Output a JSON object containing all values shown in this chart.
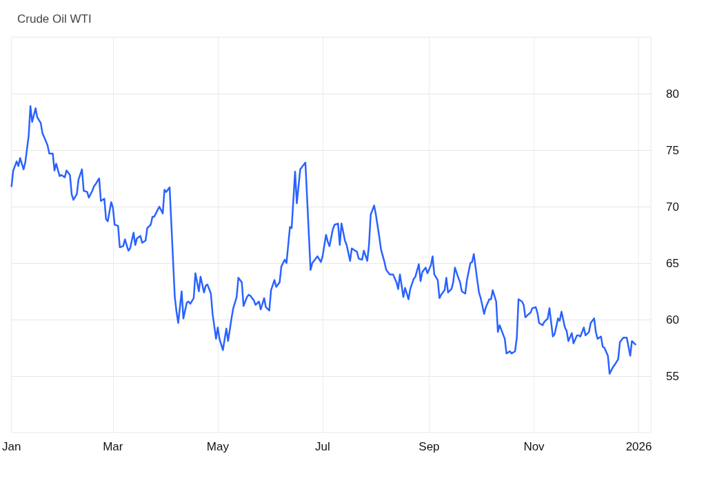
{
  "chart_data": {
    "type": "line",
    "title": "Crude Oil WTI",
    "x": [
      "2025-01-01",
      "2025-01-02",
      "2025-01-04",
      "2025-01-05",
      "2025-01-06",
      "2025-01-08",
      "2025-01-09",
      "2025-01-11",
      "2025-01-12",
      "2025-01-13",
      "2025-01-15",
      "2025-01-16",
      "2025-01-18",
      "2025-01-19",
      "2025-01-21",
      "2025-01-22",
      "2025-01-23",
      "2025-01-25",
      "2025-01-26",
      "2025-01-27",
      "2025-01-29",
      "2025-01-30",
      "2025-02-01",
      "2025-02-02",
      "2025-02-04",
      "2025-02-05",
      "2025-02-06",
      "2025-02-08",
      "2025-02-09",
      "2025-02-11",
      "2025-02-12",
      "2025-02-14",
      "2025-02-15",
      "2025-02-17",
      "2025-02-18",
      "2025-02-19",
      "2025-02-21",
      "2025-02-22",
      "2025-02-24",
      "2025-02-25",
      "2025-02-26",
      "2025-02-28",
      "2025-03-01",
      "2025-03-02",
      "2025-03-04",
      "2025-03-05",
      "2025-03-07",
      "2025-03-08",
      "2025-03-10",
      "2025-03-11",
      "2025-03-13",
      "2025-03-14",
      "2025-03-15",
      "2025-03-17",
      "2025-03-18",
      "2025-03-20",
      "2025-03-21",
      "2025-03-23",
      "2025-03-24",
      "2025-03-25",
      "2025-03-27",
      "2025-03-28",
      "2025-03-30",
      "2025-03-31",
      "2025-04-01",
      "2025-04-03",
      "2025-04-06",
      "2025-04-07",
      "2025-04-08",
      "2025-04-10",
      "2025-04-11",
      "2025-04-13",
      "2025-04-14",
      "2025-04-15",
      "2025-04-17",
      "2025-04-18",
      "2025-04-20",
      "2025-04-21",
      "2025-04-23",
      "2025-04-24",
      "2025-04-25",
      "2025-04-27",
      "2025-04-28",
      "2025-04-30",
      "2025-05-01",
      "2025-05-02",
      "2025-05-04",
      "2025-05-06",
      "2025-05-07",
      "2025-05-09",
      "2025-05-10",
      "2025-05-12",
      "2025-05-13",
      "2025-05-15",
      "2025-05-16",
      "2025-05-18",
      "2025-05-19",
      "2025-05-20",
      "2025-05-22",
      "2025-05-23",
      "2025-05-25",
      "2025-05-26",
      "2025-05-28",
      "2025-05-29",
      "2025-05-31",
      "2025-06-01",
      "2025-06-03",
      "2025-06-04",
      "2025-06-06",
      "2025-06-07",
      "2025-06-09",
      "2025-06-10",
      "2025-06-12",
      "2025-06-13",
      "2025-06-15",
      "2025-06-16",
      "2025-06-18",
      "2025-06-19",
      "2025-06-21",
      "2025-06-24",
      "2025-06-25",
      "2025-06-27",
      "2025-06-28",
      "2025-06-30",
      "2025-07-01",
      "2025-07-03",
      "2025-07-04",
      "2025-07-05",
      "2025-07-07",
      "2025-07-08",
      "2025-07-10",
      "2025-07-11",
      "2025-07-12",
      "2025-07-14",
      "2025-07-15",
      "2025-07-17",
      "2025-07-18",
      "2025-07-20",
      "2025-07-21",
      "2025-07-22",
      "2025-07-24",
      "2025-07-25",
      "2025-07-27",
      "2025-07-28",
      "2025-07-29",
      "2025-07-31",
      "2025-08-01",
      "2025-08-03",
      "2025-08-04",
      "2025-08-06",
      "2025-08-07",
      "2025-08-09",
      "2025-08-11",
      "2025-08-13",
      "2025-08-14",
      "2025-08-15",
      "2025-08-17",
      "2025-08-18",
      "2025-08-20",
      "2025-08-21",
      "2025-08-23",
      "2025-08-24",
      "2025-08-26",
      "2025-08-27",
      "2025-08-28",
      "2025-08-30",
      "2025-08-31",
      "2025-09-02",
      "2025-09-03",
      "2025-09-04",
      "2025-09-06",
      "2025-09-07",
      "2025-09-08",
      "2025-09-10",
      "2025-09-11",
      "2025-09-12",
      "2025-09-14",
      "2025-09-15",
      "2025-09-16",
      "2025-09-18",
      "2025-09-19",
      "2025-09-20",
      "2025-09-22",
      "2025-09-23",
      "2025-09-25",
      "2025-09-26",
      "2025-09-27",
      "2025-09-29",
      "2025-09-30",
      "2025-10-01",
      "2025-10-03",
      "2025-10-04",
      "2025-10-06",
      "2025-10-07",
      "2025-10-08",
      "2025-10-10",
      "2025-10-11",
      "2025-10-12",
      "2025-10-14",
      "2025-10-15",
      "2025-10-16",
      "2025-10-18",
      "2025-10-19",
      "2025-10-21",
      "2025-10-22",
      "2025-10-23",
      "2025-10-25",
      "2025-10-26",
      "2025-10-27",
      "2025-10-29",
      "2025-10-30",
      "2025-10-31",
      "2025-11-02",
      "2025-11-03",
      "2025-11-04",
      "2025-11-06",
      "2025-11-07",
      "2025-11-09",
      "2025-11-10",
      "2025-11-12",
      "2025-11-13",
      "2025-11-15",
      "2025-11-16",
      "2025-11-17",
      "2025-11-19",
      "2025-11-20",
      "2025-11-21",
      "2025-11-23",
      "2025-11-24",
      "2025-11-26",
      "2025-11-27",
      "2025-11-28",
      "2025-11-30",
      "2025-12-01",
      "2025-12-03",
      "2025-12-04",
      "2025-12-06",
      "2025-12-07",
      "2025-12-08",
      "2025-12-10",
      "2025-12-11",
      "2025-12-12",
      "2025-12-14",
      "2025-12-15",
      "2025-12-17",
      "2025-12-18",
      "2025-12-20",
      "2025-12-21",
      "2025-12-23",
      "2025-12-24",
      "2025-12-25",
      "2025-12-27",
      "2025-12-28",
      "2025-12-30"
    ],
    "series": [
      {
        "color": "#2962ff",
        "values": [
          71.8,
          73.2,
          74.0,
          73.6,
          74.3,
          73.3,
          73.9,
          76.3,
          78.9,
          77.5,
          78.7,
          77.9,
          77.4,
          76.5,
          75.8,
          75.4,
          74.7,
          74.7,
          73.2,
          73.8,
          72.7,
          72.8,
          72.6,
          73.2,
          72.8,
          71.1,
          70.6,
          71.1,
          72.4,
          73.3,
          71.4,
          71.3,
          70.8,
          71.4,
          71.8,
          72.0,
          72.5,
          70.5,
          70.7,
          68.9,
          68.7,
          70.4,
          69.9,
          68.4,
          68.3,
          66.4,
          66.5,
          67.1,
          66.1,
          66.3,
          67.7,
          66.6,
          67.2,
          67.4,
          66.8,
          67.0,
          68.1,
          68.4,
          69.1,
          69.1,
          69.7,
          70.0,
          69.4,
          71.5,
          71.3,
          71.7,
          62.0,
          60.7,
          59.7,
          62.5,
          60.1,
          61.5,
          61.6,
          61.4,
          61.9,
          64.1,
          62.5,
          63.8,
          62.4,
          63.0,
          63.1,
          62.3,
          60.5,
          58.3,
          59.3,
          58.3,
          57.3,
          59.2,
          58.1,
          60.1,
          61.0,
          62.0,
          63.7,
          63.3,
          61.2,
          62.0,
          62.2,
          62.1,
          61.7,
          61.3,
          61.6,
          60.9,
          61.9,
          61.1,
          60.8,
          62.6,
          63.5,
          62.9,
          63.3,
          64.7,
          65.3,
          65.0,
          68.2,
          68.1,
          73.1,
          70.3,
          73.3,
          73.5,
          73.9,
          64.4,
          65.0,
          65.4,
          65.6,
          65.1,
          65.6,
          67.5,
          66.9,
          66.5,
          68.0,
          68.4,
          68.5,
          66.6,
          68.5,
          67.0,
          66.6,
          65.2,
          66.3,
          66.1,
          66.0,
          65.4,
          65.3,
          66.1,
          65.2,
          66.6,
          69.3,
          70.1,
          69.3,
          67.3,
          66.2,
          65.1,
          64.4,
          64.0,
          64.0,
          63.3,
          62.7,
          64.0,
          62.0,
          62.8,
          61.8,
          62.7,
          63.6,
          63.8,
          64.9,
          63.4,
          64.2,
          64.6,
          64.1,
          64.8,
          65.6,
          64.0,
          63.5,
          61.9,
          62.2,
          62.6,
          63.7,
          62.4,
          62.7,
          63.3,
          64.6,
          63.7,
          63.3,
          62.5,
          62.3,
          63.5,
          65.0,
          65.1,
          65.8,
          63.5,
          62.4,
          61.9,
          60.5,
          61.1,
          61.8,
          61.8,
          62.6,
          61.6,
          58.9,
          59.5,
          58.7,
          58.3,
          57.0,
          57.2,
          57.0,
          57.2,
          58.4,
          61.8,
          61.6,
          61.3,
          60.2,
          60.5,
          60.6,
          61.0,
          61.1,
          60.6,
          59.7,
          59.5,
          59.8,
          60.1,
          61.0,
          58.5,
          58.7,
          60.1,
          59.9,
          60.7,
          59.3,
          59.0,
          58.1,
          58.8,
          57.9,
          58.6,
          58.6,
          58.5,
          59.3,
          58.6,
          58.9,
          59.7,
          60.1,
          58.9,
          58.3,
          58.5,
          57.6,
          57.5,
          56.8,
          55.2,
          55.8,
          56.0,
          56.5,
          58.0,
          58.4,
          58.4,
          58.4,
          56.8,
          58.1,
          57.8
        ]
      }
    ],
    "xlim": [
      "2025-01-01",
      "2026-01-08"
    ],
    "xticks": [
      {
        "value": "2025-01-01",
        "label": "Jan"
      },
      {
        "value": "2025-03-01",
        "label": "Mar"
      },
      {
        "value": "2025-05-01",
        "label": "May"
      },
      {
        "value": "2025-07-01",
        "label": "Jul"
      },
      {
        "value": "2025-09-01",
        "label": "Sep"
      },
      {
        "value": "2025-11-01",
        "label": "Nov"
      },
      {
        "value": "2026-01-01",
        "label": "2026"
      }
    ],
    "ylim": [
      50,
      85
    ],
    "yticks": [
      55,
      60,
      65,
      70,
      75,
      80
    ],
    "grid": true,
    "marker": "none",
    "line_style": "solid"
  }
}
